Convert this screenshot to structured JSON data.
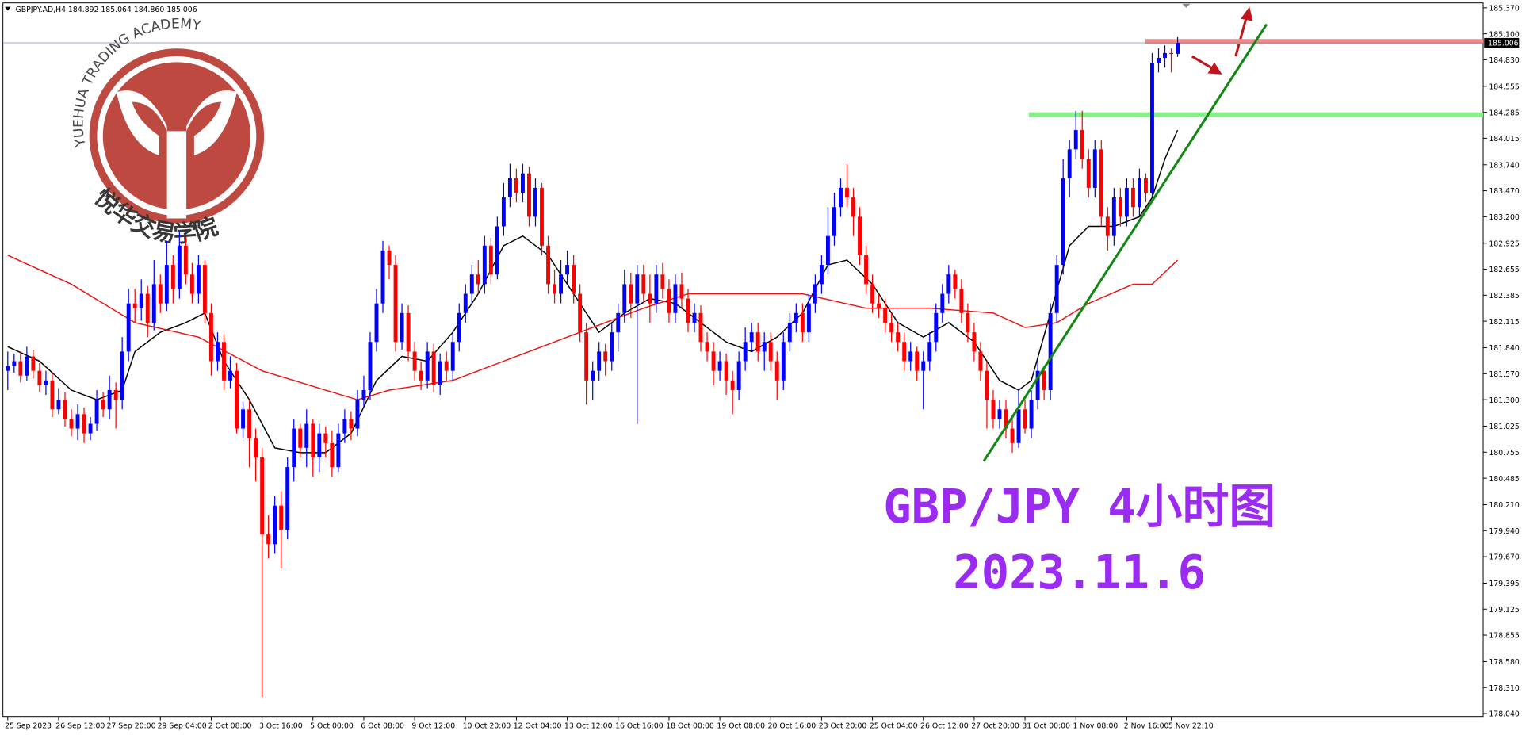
{
  "chart_data": {
    "type": "candlestick",
    "header": "GBPJPY.AD,H4  184.892 185.064 184.860 185.006",
    "annotations": [
      "GBP/JPY 4小时图",
      "2023.11.6"
    ],
    "logo": {
      "arc_text": "YUEHUA TRADING ACADEMY",
      "name": "悦华交易学院"
    },
    "up_color": "#0000ff",
    "down_color": "#ff0000",
    "ylim": [
      178.04,
      185.37
    ],
    "yticks": [
      {
        "value": 185.37,
        "label": "185.370"
      },
      {
        "value": 185.1,
        "label": "185.100"
      },
      {
        "value": 184.83,
        "label": "184.830"
      },
      {
        "value": 184.555,
        "label": "184.555"
      },
      {
        "value": 184.285,
        "label": "184.285"
      },
      {
        "value": 184.015,
        "label": "184.015"
      },
      {
        "value": 183.74,
        "label": "183.740"
      },
      {
        "value": 183.47,
        "label": "183.470"
      },
      {
        "value": 183.2,
        "label": "183.200"
      },
      {
        "value": 182.925,
        "label": "182.925"
      },
      {
        "value": 182.655,
        "label": "182.655"
      },
      {
        "value": 182.385,
        "label": "182.385"
      },
      {
        "value": 182.115,
        "label": "182.115"
      },
      {
        "value": 181.84,
        "label": "181.840"
      },
      {
        "value": 181.57,
        "label": "181.570"
      },
      {
        "value": 181.3,
        "label": "181.300"
      },
      {
        "value": 181.025,
        "label": "181.025"
      },
      {
        "value": 180.755,
        "label": "180.755"
      },
      {
        "value": 180.485,
        "label": "180.485"
      },
      {
        "value": 180.21,
        "label": "180.210"
      },
      {
        "value": 179.94,
        "label": "179.940"
      },
      {
        "value": 179.67,
        "label": "179.670"
      },
      {
        "value": 179.395,
        "label": "179.395"
      },
      {
        "value": 179.125,
        "label": "179.125"
      },
      {
        "value": 178.855,
        "label": "178.855"
      },
      {
        "value": 178.58,
        "label": "178.580"
      },
      {
        "value": 178.31,
        "label": "178.310"
      },
      {
        "value": 178.04,
        "label": "178.040"
      }
    ],
    "categories": [
      "25 Sep 2023",
      null,
      null,
      null,
      null,
      null,
      null,
      null,
      "26 Sep 12:00",
      null,
      null,
      null,
      null,
      null,
      null,
      null,
      "27 Sep 20:00",
      null,
      null,
      null,
      null,
      null,
      null,
      null,
      "29 Sep 04:00",
      null,
      null,
      null,
      null,
      null,
      null,
      null,
      "2 Oct 08:00",
      null,
      null,
      null,
      null,
      null,
      null,
      null,
      "3 Oct 16:00",
      null,
      null,
      null,
      null,
      null,
      null,
      null,
      "5 Oct 00:00",
      null,
      null,
      null,
      null,
      null,
      null,
      null,
      "6 Oct 08:00",
      null,
      null,
      null,
      null,
      null,
      null,
      null,
      "9 Oct 12:00",
      null,
      null,
      null,
      null,
      null,
      null,
      null,
      "10 Oct 20:00",
      null,
      null,
      null,
      null,
      null,
      null,
      null,
      "12 Oct 04:00",
      null,
      null,
      null,
      null,
      null,
      null,
      null,
      "13 Oct 12:00",
      null,
      null,
      null,
      null,
      null,
      null,
      null,
      "16 Oct 16:00",
      null,
      null,
      null,
      null,
      null,
      null,
      null,
      "18 Oct 00:00",
      null,
      null,
      null,
      null,
      null,
      null,
      null,
      "19 Oct 08:00",
      null,
      null,
      null,
      null,
      null,
      null,
      null,
      "20 Oct 16:00",
      null,
      null,
      null,
      null,
      null,
      null,
      null,
      "23 Oct 20:00",
      null,
      null,
      null,
      null,
      null,
      null,
      null,
      "25 Oct 04:00",
      null,
      null,
      null,
      null,
      null,
      null,
      null,
      "26 Oct 12:00",
      null,
      null,
      null,
      null,
      null,
      null,
      null,
      "27 Oct 20:00",
      null,
      null,
      null,
      null,
      null,
      null,
      null,
      "31 Oct 00:00",
      null,
      null,
      null,
      null,
      null,
      null,
      null,
      "1 Nov 08:00",
      null,
      null,
      null,
      null,
      null,
      null,
      null,
      "2 Nov 16:00",
      null,
      null,
      null,
      null,
      null,
      null,
      "5 Nov 22:10",
      null
    ],
    "open": [
      181.6,
      181.65,
      181.7,
      181.55,
      181.75,
      181.6,
      181.45,
      181.5,
      181.2,
      181.3,
      181.1,
      181.0,
      181.15,
      180.95,
      181.05,
      181.3,
      181.2,
      181.4,
      181.3,
      181.8,
      182.3,
      182.25,
      182.4,
      182.1,
      182.5,
      182.3,
      182.7,
      182.45,
      182.9,
      182.6,
      182.4,
      182.7,
      182.2,
      181.7,
      181.9,
      181.5,
      181.6,
      181.0,
      181.2,
      180.9,
      180.7,
      179.9,
      179.8,
      180.2,
      179.95,
      180.6,
      181.0,
      180.8,
      181.05,
      180.7,
      180.95,
      180.85,
      180.6,
      180.95,
      181.1,
      181.0,
      181.3,
      181.4,
      181.9,
      182.3,
      182.85,
      182.7,
      181.9,
      182.2,
      181.8,
      181.6,
      181.5,
      181.8,
      181.45,
      181.7,
      181.6,
      181.9,
      182.2,
      182.4,
      182.6,
      182.5,
      182.9,
      182.6,
      183.1,
      183.4,
      183.6,
      183.45,
      183.65,
      183.2,
      183.5,
      182.9,
      182.5,
      182.4,
      182.6,
      182.7,
      182.4,
      182.0,
      181.5,
      181.6,
      181.8,
      181.7,
      182.0,
      182.2,
      182.5,
      182.3,
      182.6,
      182.4,
      182.3,
      182.6,
      182.45,
      182.2,
      182.5,
      182.35,
      182.1,
      182.2,
      181.9,
      181.8,
      181.6,
      181.7,
      181.5,
      181.4,
      181.7,
      181.9,
      182.0,
      181.8,
      181.9,
      181.7,
      181.5,
      181.9,
      182.1,
      182.2,
      182.0,
      182.3,
      182.5,
      182.7,
      183.0,
      183.3,
      183.5,
      183.4,
      183.2,
      182.8,
      182.5,
      182.3,
      182.25,
      182.1,
      182.0,
      181.9,
      181.7,
      181.8,
      181.6,
      181.7,
      181.9,
      182.2,
      182.4,
      182.6,
      182.45,
      182.2,
      182.0,
      181.8,
      181.6,
      181.3,
      181.1,
      181.2,
      181.0,
      180.85,
      181.2,
      181.0,
      181.3,
      181.6,
      181.4,
      182.2,
      182.7,
      183.6,
      183.9,
      184.1,
      183.8,
      183.5,
      183.9,
      183.2,
      183.0,
      183.4,
      183.2,
      183.5,
      183.3,
      183.6,
      183.45,
      184.8,
      184.85,
      184.9,
      184.892
    ],
    "high": [
      181.8,
      181.78,
      181.8,
      181.85,
      181.82,
      181.68,
      181.6,
      181.58,
      181.42,
      181.38,
      181.2,
      181.25,
      181.22,
      181.12,
      181.4,
      181.38,
      181.55,
      181.48,
      181.95,
      182.45,
      182.45,
      182.55,
      182.48,
      182.75,
      182.6,
      182.95,
      182.8,
      183.05,
      182.98,
      182.72,
      182.8,
      182.75,
      182.3,
      182.0,
      181.98,
      181.75,
      181.68,
      181.28,
      181.3,
      181.0,
      180.8,
      180.1,
      180.3,
      180.35,
      180.7,
      181.1,
      181.05,
      181.2,
      181.1,
      181.05,
      181.02,
      180.98,
      181.05,
      181.2,
      181.18,
      181.4,
      181.55,
      182.0,
      182.45,
      182.95,
      182.9,
      182.8,
      182.3,
      182.28,
      181.9,
      181.7,
      181.9,
      181.88,
      181.78,
      181.8,
      182.0,
      182.3,
      182.5,
      182.7,
      182.75,
      183.0,
      182.98,
      183.2,
      183.55,
      183.75,
      183.7,
      183.75,
      183.72,
      183.6,
      183.55,
      183.0,
      182.65,
      182.75,
      182.85,
      182.8,
      182.5,
      182.1,
      181.7,
      181.9,
      181.88,
      182.1,
      182.3,
      182.65,
      182.62,
      182.7,
      182.7,
      182.6,
      182.7,
      182.72,
      182.55,
      182.6,
      182.62,
      182.45,
      182.3,
      182.28,
      182.0,
      181.9,
      181.8,
      181.78,
      181.6,
      181.8,
      182.05,
      182.1,
      182.1,
      182.0,
      182.0,
      181.8,
      182.0,
      182.2,
      182.3,
      182.3,
      182.4,
      182.6,
      182.8,
      183.3,
      183.45,
      183.6,
      183.75,
      183.5,
      183.3,
      182.9,
      182.6,
      182.4,
      182.35,
      182.2,
      182.1,
      182.0,
      181.9,
      181.85,
      181.8,
      182.0,
      182.3,
      182.5,
      182.7,
      182.65,
      182.55,
      182.3,
      182.1,
      181.9,
      181.7,
      181.4,
      181.3,
      181.3,
      181.1,
      181.4,
      181.3,
      181.4,
      181.7,
      181.65,
      182.3,
      182.8,
      183.8,
      184.0,
      184.3,
      184.3,
      183.9,
      184.0,
      184.0,
      183.3,
      183.5,
      183.5,
      183.6,
      183.6,
      183.7,
      183.65,
      184.9,
      184.95,
      184.98,
      184.95,
      185.064
    ],
    "low": [
      181.4,
      181.58,
      181.48,
      181.5,
      181.52,
      181.38,
      181.35,
      181.12,
      181.15,
      181.02,
      180.92,
      180.88,
      180.85,
      180.88,
      180.98,
      181.12,
      181.1,
      181.0,
      181.2,
      181.7,
      182.1,
      182.12,
      181.95,
      182.02,
      182.2,
      182.22,
      182.3,
      182.35,
      182.5,
      182.3,
      182.3,
      182.1,
      181.55,
      181.6,
      181.4,
      181.42,
      180.95,
      180.9,
      180.6,
      180.45,
      178.21,
      179.65,
      179.7,
      179.55,
      179.85,
      180.45,
      180.7,
      180.6,
      180.5,
      180.55,
      180.7,
      180.5,
      180.55,
      180.85,
      180.88,
      180.92,
      181.22,
      181.3,
      181.8,
      182.2,
      182.55,
      181.8,
      181.82,
      181.7,
      181.5,
      181.4,
      181.42,
      181.38,
      181.35,
      181.5,
      181.5,
      181.8,
      182.1,
      182.3,
      182.4,
      182.4,
      182.5,
      182.55,
      183.0,
      183.3,
      183.35,
      183.35,
      183.1,
      183.1,
      182.8,
      182.4,
      182.3,
      182.3,
      182.5,
      182.3,
      181.9,
      181.25,
      181.3,
      181.5,
      181.55,
      181.6,
      181.8,
      182.1,
      182.15,
      181.05,
      182.3,
      182.1,
      182.2,
      182.35,
      182.1,
      182.1,
      182.25,
      182.0,
      182.0,
      181.8,
      181.7,
      181.45,
      181.5,
      181.35,
      181.15,
      181.3,
      181.6,
      181.8,
      181.7,
      181.6,
      181.6,
      181.3,
      181.4,
      181.8,
      182.0,
      181.9,
      181.9,
      182.2,
      182.4,
      182.6,
      182.9,
      183.2,
      183.3,
      183.0,
      182.7,
      182.4,
      182.2,
      182.15,
      182.0,
      181.9,
      181.8,
      181.6,
      181.6,
      181.5,
      181.2,
      181.6,
      181.8,
      182.1,
      182.3,
      182.35,
      182.1,
      181.9,
      181.7,
      181.5,
      181.0,
      181.0,
      181.0,
      180.9,
      180.75,
      180.8,
      180.95,
      180.9,
      181.2,
      181.3,
      181.3,
      182.1,
      182.6,
      183.4,
      183.8,
      183.7,
      183.4,
      183.4,
      183.1,
      182.85,
      182.9,
      183.1,
      183.1,
      183.2,
      183.2,
      183.35,
      183.4,
      184.7,
      184.75,
      184.7,
      184.86
    ],
    "close": [
      181.65,
      181.7,
      181.55,
      181.75,
      181.6,
      181.45,
      181.5,
      181.2,
      181.3,
      181.1,
      181.0,
      181.15,
      180.95,
      181.05,
      181.3,
      181.2,
      181.4,
      181.3,
      181.8,
      182.3,
      182.25,
      182.4,
      182.1,
      182.5,
      182.3,
      182.7,
      182.45,
      182.9,
      182.6,
      182.4,
      182.7,
      182.2,
      181.7,
      181.9,
      181.5,
      181.6,
      181.0,
      181.2,
      180.9,
      180.7,
      179.9,
      179.8,
      180.2,
      179.95,
      180.6,
      181.0,
      180.8,
      181.05,
      180.7,
      180.95,
      180.85,
      180.6,
      180.95,
      181.1,
      181.0,
      181.3,
      181.4,
      181.9,
      182.3,
      182.85,
      182.7,
      181.9,
      182.2,
      181.8,
      181.6,
      181.5,
      181.8,
      181.45,
      181.7,
      181.6,
      181.9,
      182.2,
      182.4,
      182.6,
      182.5,
      182.9,
      182.6,
      183.1,
      183.4,
      183.6,
      183.45,
      183.65,
      183.2,
      183.5,
      182.9,
      182.5,
      182.4,
      182.6,
      182.7,
      182.4,
      182.0,
      181.5,
      181.6,
      181.8,
      181.7,
      182.0,
      182.2,
      182.5,
      182.3,
      182.6,
      182.4,
      182.3,
      182.6,
      182.45,
      182.2,
      182.5,
      182.35,
      182.1,
      182.2,
      181.9,
      181.8,
      181.6,
      181.7,
      181.5,
      181.4,
      181.7,
      181.9,
      182.0,
      181.8,
      181.9,
      181.7,
      181.5,
      181.9,
      182.1,
      182.2,
      182.0,
      182.3,
      182.5,
      182.7,
      183.0,
      183.3,
      183.5,
      183.4,
      183.2,
      182.8,
      182.5,
      182.3,
      182.25,
      182.1,
      182.0,
      181.9,
      181.7,
      181.8,
      181.6,
      181.7,
      181.9,
      182.2,
      182.4,
      182.6,
      182.45,
      182.2,
      182.0,
      181.8,
      181.6,
      181.3,
      181.1,
      181.2,
      181.0,
      180.85,
      181.2,
      181.0,
      181.3,
      181.6,
      181.4,
      182.2,
      182.7,
      183.6,
      183.9,
      184.1,
      183.8,
      183.5,
      183.9,
      183.2,
      183.0,
      183.4,
      183.2,
      183.5,
      183.3,
      183.6,
      183.45,
      184.8,
      184.85,
      184.9,
      184.892,
      185.006
    ],
    "moving_averages": [
      {
        "color": "#000000",
        "x": [
          0,
          5,
          10,
          14,
          18,
          20,
          24,
          28,
          31,
          34,
          38,
          42,
          46,
          50,
          54,
          58,
          62,
          66,
          70,
          74,
          78,
          81,
          85,
          89,
          93,
          97,
          101,
          105,
          109,
          113,
          117,
          121,
          125,
          129,
          132,
          136,
          140,
          144,
          148,
          152,
          156,
          159,
          161,
          164,
          167,
          170,
          174,
          178,
          180,
          182,
          184
        ],
        "values": [
          181.85,
          181.7,
          181.4,
          181.3,
          181.4,
          181.8,
          182.0,
          182.1,
          182.2,
          181.7,
          181.3,
          180.8,
          180.75,
          180.75,
          180.95,
          181.5,
          181.75,
          181.7,
          182.0,
          182.4,
          182.9,
          183.0,
          182.8,
          182.4,
          182.0,
          182.2,
          182.35,
          182.3,
          182.1,
          181.9,
          181.8,
          181.95,
          182.2,
          182.7,
          182.75,
          182.5,
          182.1,
          181.95,
          182.1,
          181.9,
          181.5,
          181.4,
          181.5,
          182.2,
          182.9,
          183.1,
          183.1,
          183.2,
          183.4,
          183.8,
          184.1
        ]
      },
      {
        "color": "#ee1111",
        "x": [
          0,
          10,
          20,
          30,
          40,
          50,
          55,
          60,
          70,
          80,
          90,
          100,
          107,
          115,
          125,
          135,
          145,
          155,
          160,
          165,
          170,
          177,
          180,
          184
        ],
        "values": [
          182.8,
          182.5,
          182.1,
          181.95,
          181.6,
          181.4,
          181.3,
          181.4,
          181.5,
          181.75,
          182.0,
          182.25,
          182.4,
          182.4,
          182.4,
          182.25,
          182.25,
          182.2,
          182.05,
          182.1,
          182.3,
          182.5,
          182.5,
          182.75
        ]
      }
    ],
    "levels": [
      {
        "value": 185.02,
        "color": "#f08a8a"
      },
      {
        "value": 184.26,
        "color": "#88ee88"
      }
    ],
    "trendline": {
      "x": [
        153.5,
        198.0
      ],
      "values": [
        180.66,
        185.2
      ],
      "color": "#118811"
    }
  }
}
